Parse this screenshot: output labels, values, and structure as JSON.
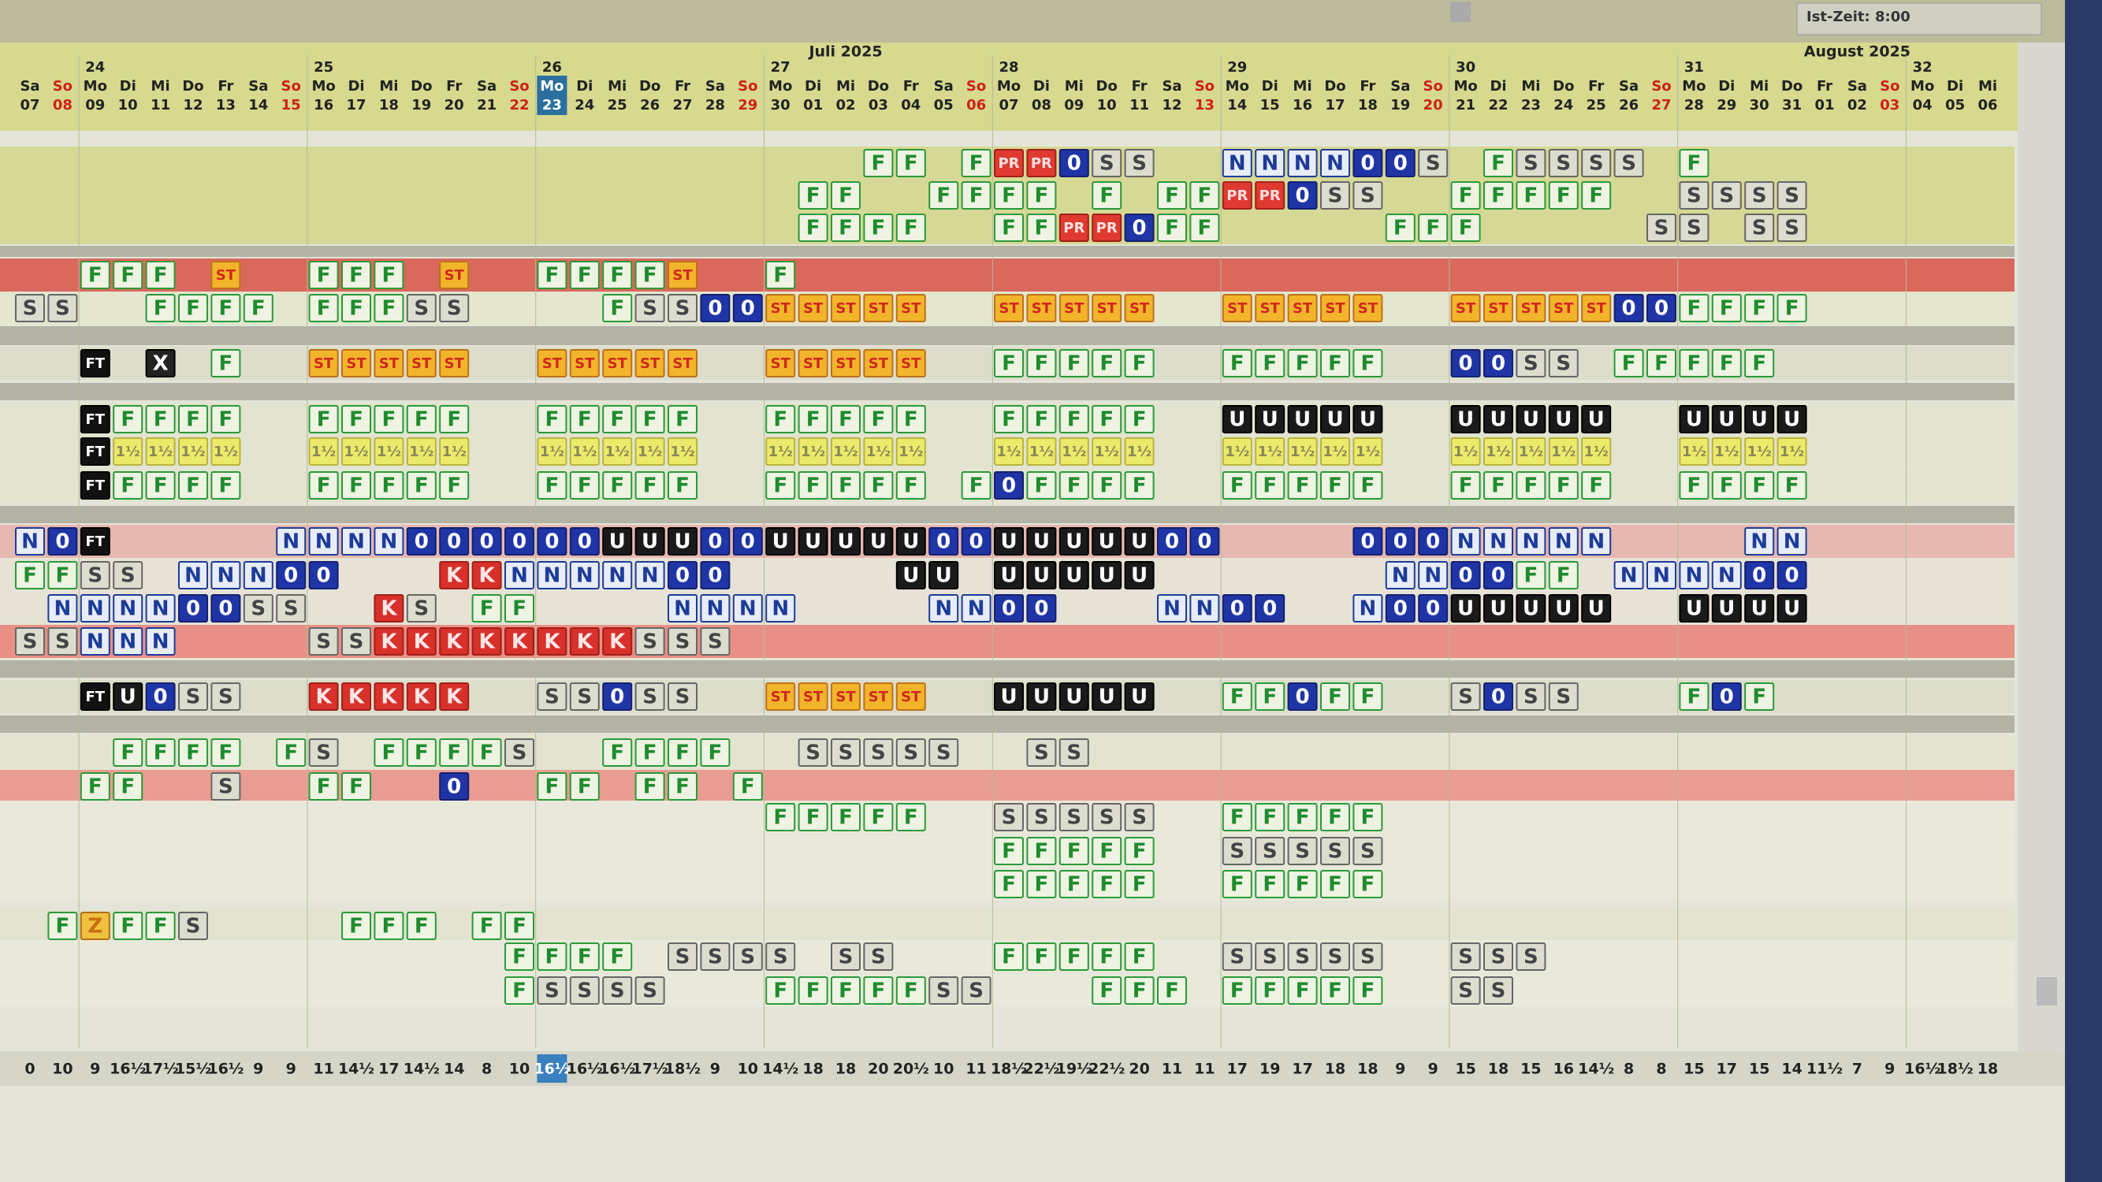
{
  "header": {
    "status": "Ist-Zeit: 8:00",
    "months": [
      "Juli 2025",
      "August 2025"
    ],
    "weeks": [
      "24",
      "25",
      "26",
      "27",
      "28",
      "29",
      "30",
      "31",
      "32"
    ],
    "weekdays": [
      "Sa",
      "So",
      "Mo",
      "Di",
      "Mi",
      "Do",
      "Fr",
      "Sa",
      "So",
      "Mo",
      "Di",
      "Mi",
      "Do",
      "Fr",
      "Sa",
      "So",
      "Mo",
      "Di",
      "Mi",
      "Do",
      "Fr",
      "Sa",
      "So",
      "Mo",
      "Di",
      "Mi",
      "Do",
      "Fr",
      "Sa",
      "So",
      "Mo",
      "Di",
      "Mi",
      "Do",
      "Fr",
      "Sa",
      "So",
      "Mo",
      "Di",
      "Mi",
      "Do",
      "Fr",
      "Sa",
      "So",
      "Mo",
      "Di",
      "Mi",
      "Do",
      "Fr",
      "Sa",
      "So",
      "Mo",
      "Di",
      "Mi",
      "Do",
      "Fr",
      "Sa",
      "So",
      "Mo",
      "Di",
      "Mi"
    ],
    "dates": [
      "07",
      "08",
      "09",
      "10",
      "11",
      "12",
      "13",
      "14",
      "15",
      "16",
      "17",
      "18",
      "19",
      "20",
      "21",
      "22",
      "23",
      "24",
      "25",
      "26",
      "27",
      "28",
      "29",
      "30",
      "01",
      "02",
      "03",
      "04",
      "05",
      "06",
      "07",
      "08",
      "09",
      "10",
      "11",
      "12",
      "13",
      "14",
      "15",
      "16",
      "17",
      "18",
      "19",
      "20",
      "21",
      "22",
      "23",
      "24",
      "25",
      "26",
      "27",
      "28",
      "29",
      "30",
      "31",
      "01",
      "02",
      "03",
      "04",
      "05",
      "06"
    ]
  },
  "rows": [
    [
      null,
      null,
      null,
      null,
      null,
      null,
      null,
      null,
      null,
      null,
      null,
      null,
      null,
      null,
      null,
      null,
      null,
      null,
      null,
      null,
      null,
      null,
      null,
      null,
      null,
      null,
      "F",
      "F",
      null,
      "F",
      "PR",
      "PR",
      "0",
      "S",
      "S",
      null,
      null,
      "N",
      "N",
      "N",
      "N",
      "0",
      "0",
      "S",
      null,
      "F",
      "S",
      "S",
      "S",
      "S",
      null,
      "F",
      null,
      null,
      null,
      null,
      null,
      null,
      null,
      null,
      null
    ],
    [
      null,
      null,
      null,
      null,
      null,
      null,
      null,
      null,
      null,
      null,
      null,
      null,
      null,
      null,
      null,
      null,
      null,
      null,
      null,
      null,
      null,
      null,
      null,
      null,
      "F",
      "F",
      null,
      null,
      "F",
      "F",
      "F",
      "F",
      null,
      "F",
      null,
      "F",
      "F",
      "PR",
      "PR",
      "0",
      "S",
      "S",
      null,
      null,
      "F",
      "F",
      "F",
      "F",
      "F",
      null,
      null,
      "S",
      "S",
      "S",
      "S",
      null,
      null,
      null,
      null,
      null,
      null
    ],
    [
      null,
      null,
      null,
      null,
      null,
      null,
      null,
      null,
      null,
      null,
      null,
      null,
      null,
      null,
      null,
      null,
      null,
      null,
      null,
      null,
      null,
      null,
      null,
      null,
      "F",
      "F",
      "F",
      "F",
      null,
      null,
      "F",
      "F",
      "PR",
      "PR",
      "0",
      "F",
      "F",
      null,
      null,
      null,
      null,
      null,
      "F",
      "F",
      "F",
      null,
      null,
      null,
      null,
      null,
      "S",
      "S",
      null,
      "S",
      "S",
      null,
      null,
      null,
      null,
      null,
      null
    ],
    [
      null,
      null,
      "F",
      "F",
      "F",
      null,
      "ST",
      null,
      null,
      "F",
      "F",
      "F",
      null,
      "ST",
      null,
      null,
      "F",
      "F",
      "F",
      "F",
      "ST",
      null,
      null,
      "F",
      null,
      null,
      null,
      null,
      null,
      null,
      null,
      null,
      null,
      null,
      null,
      null,
      null,
      null,
      null,
      null,
      null,
      null,
      null,
      null,
      null,
      null,
      null,
      null,
      null,
      null,
      null,
      null,
      null,
      null,
      null,
      null,
      null,
      null,
      null,
      null,
      null
    ],
    [
      "S",
      "S",
      null,
      null,
      "F",
      "F",
      "F",
      "F",
      null,
      "F",
      "F",
      "F",
      "S",
      "S",
      null,
      null,
      null,
      null,
      "F",
      "S",
      "S",
      "0",
      "0",
      "ST",
      "ST",
      "ST",
      "ST",
      "ST",
      null,
      null,
      "ST",
      "ST",
      "ST",
      "ST",
      "ST",
      null,
      null,
      "ST",
      "ST",
      "ST",
      "ST",
      "ST",
      null,
      null,
      "ST",
      "ST",
      "ST",
      "ST",
      "ST",
      "0",
      "0",
      "F",
      "F",
      "F",
      "F",
      null,
      null,
      null,
      null,
      null,
      null
    ],
    [
      null,
      null,
      "FT",
      null,
      "X",
      null,
      "F",
      null,
      null,
      "ST",
      "ST",
      "ST",
      "ST",
      "ST",
      null,
      null,
      "ST",
      "ST",
      "ST",
      "ST",
      "ST",
      null,
      null,
      "ST",
      "ST",
      "ST",
      "ST",
      "ST",
      null,
      null,
      "F",
      "F",
      "F",
      "F",
      "F",
      null,
      null,
      "F",
      "F",
      "F",
      "F",
      "F",
      null,
      null,
      "0",
      "0",
      "S",
      "S",
      null,
      "F",
      "F",
      "F",
      "F",
      "F",
      null,
      null,
      null,
      null,
      null,
      null,
      null
    ],
    [
      null,
      null,
      "FT",
      "F",
      "F",
      "F",
      "F",
      null,
      null,
      "F",
      "F",
      "F",
      "F",
      "F",
      null,
      null,
      "F",
      "F",
      "F",
      "F",
      "F",
      null,
      null,
      "F",
      "F",
      "F",
      "F",
      "F",
      null,
      null,
      "F",
      "F",
      "F",
      "F",
      "F",
      null,
      null,
      "U",
      "U",
      "U",
      "U",
      "U",
      null,
      null,
      "U",
      "U",
      "U",
      "U",
      "U",
      null,
      null,
      "U",
      "U",
      "U",
      "U",
      null,
      null,
      null,
      null,
      null,
      null
    ],
    [
      null,
      null,
      "FT",
      "1½",
      "1½",
      "1½",
      "1½",
      null,
      null,
      "1½",
      "1½",
      "1½",
      "1½",
      "1½",
      null,
      null,
      "1½",
      "1½",
      "1½",
      "1½",
      "1½",
      null,
      null,
      "1½",
      "1½",
      "1½",
      "1½",
      "1½",
      null,
      null,
      "1½",
      "1½",
      "1½",
      "1½",
      "1½",
      null,
      null,
      "1½",
      "1½",
      "1½",
      "1½",
      "1½",
      null,
      null,
      "1½",
      "1½",
      "1½",
      "1½",
      "1½",
      null,
      null,
      "1½",
      "1½",
      "1½",
      "1½",
      null,
      null,
      null,
      null,
      null,
      null
    ],
    [
      null,
      null,
      "FT",
      "F",
      "F",
      "F",
      "F",
      null,
      null,
      "F",
      "F",
      "F",
      "F",
      "F",
      null,
      null,
      "F",
      "F",
      "F",
      "F",
      "F",
      null,
      null,
      "F",
      "F",
      "F",
      "F",
      "F",
      null,
      "F",
      "0",
      "F",
      "F",
      "F",
      "F",
      null,
      null,
      "F",
      "F",
      "F",
      "F",
      "F",
      null,
      null,
      "F",
      "F",
      "F",
      "F",
      "F",
      null,
      null,
      "F",
      "F",
      "F",
      "F",
      null,
      null,
      null,
      null,
      null,
      null
    ],
    [
      "N",
      "0",
      "FT",
      null,
      null,
      null,
      null,
      null,
      "N",
      "N",
      "N",
      "N",
      "0",
      "0",
      "0",
      "0",
      "0",
      "0",
      "U",
      "U",
      "U",
      "0",
      "0",
      "U",
      "U",
      "U",
      "U",
      "U",
      "0",
      "0",
      "U",
      "U",
      "U",
      "U",
      "U",
      "0",
      "0",
      null,
      null,
      null,
      null,
      "0",
      "0",
      "0",
      "N",
      "N",
      "N",
      "N",
      "N",
      null,
      null,
      null,
      null,
      "N",
      "N",
      null,
      null,
      null,
      null,
      null,
      null
    ],
    [
      "F",
      "F",
      "S",
      "S",
      null,
      "N",
      "N",
      "N",
      "0",
      "0",
      null,
      null,
      null,
      "K",
      "K",
      "N",
      "N",
      "N",
      "N",
      "N",
      "0",
      "0",
      null,
      null,
      null,
      null,
      null,
      "U",
      "U",
      null,
      "U",
      "U",
      "U",
      "U",
      "U",
      null,
      null,
      null,
      null,
      null,
      null,
      null,
      "N",
      "N",
      "0",
      "0",
      "F",
      "F",
      null,
      "N",
      "N",
      "N",
      "N",
      "0",
      "0",
      null,
      null,
      null,
      null,
      null,
      null
    ],
    [
      null,
      "N",
      "N",
      "N",
      "N",
      "0",
      "0",
      "S",
      "S",
      null,
      null,
      "K",
      "S",
      null,
      "F",
      "F",
      null,
      null,
      null,
      null,
      "N",
      "N",
      "N",
      "N",
      null,
      null,
      null,
      null,
      "N",
      "N",
      "0",
      "0",
      null,
      null,
      null,
      "N",
      "N",
      "0",
      "0",
      null,
      null,
      "N",
      "0",
      "0",
      "U",
      "U",
      "U",
      "U",
      "U",
      null,
      null,
      "U",
      "U",
      "U",
      "U",
      null,
      null,
      null,
      null,
      null,
      null
    ],
    [
      "S",
      "S",
      "N",
      "N",
      "N",
      null,
      null,
      null,
      null,
      "S",
      "S",
      "K",
      "K",
      "K",
      "K",
      "K",
      "K",
      "K",
      "K",
      "S",
      "S",
      "S",
      null,
      null,
      null,
      null,
      null,
      null,
      null,
      null,
      null,
      null,
      null,
      null,
      null,
      null,
      null,
      null,
      null,
      null,
      null,
      null,
      null,
      null,
      null,
      null,
      null,
      null,
      null,
      null,
      null,
      null,
      null,
      null,
      null,
      null,
      null,
      null,
      null,
      null,
      null
    ],
    [
      null,
      null,
      "FT",
      "U",
      "0",
      "S",
      "S",
      null,
      null,
      "K",
      "K",
      "K",
      "K",
      "K",
      null,
      null,
      "S",
      "S",
      "0",
      "S",
      "S",
      null,
      null,
      "ST",
      "ST",
      "ST",
      "ST",
      "ST",
      null,
      null,
      "U",
      "U",
      "U",
      "U",
      "U",
      null,
      null,
      "F",
      "F",
      "0",
      "F",
      "F",
      null,
      null,
      "S",
      "0",
      "S",
      "S",
      null,
      null,
      null,
      "F",
      "0",
      "F",
      null,
      null,
      null,
      null,
      null,
      null,
      null
    ],
    [
      null,
      null,
      null,
      "F",
      "F",
      "F",
      "F",
      null,
      "F",
      "S",
      null,
      "F",
      "F",
      "F",
      "F",
      "S",
      null,
      null,
      "F",
      "F",
      "F",
      "F",
      null,
      null,
      "S",
      "S",
      "S",
      "S",
      "S",
      null,
      null,
      "S",
      "S",
      null,
      null,
      null,
      null,
      null,
      null,
      null,
      null,
      null,
      null,
      null,
      null,
      null,
      null,
      null,
      null,
      null,
      null,
      null,
      null,
      null,
      null,
      null,
      null,
      null,
      null,
      null,
      null
    ],
    [
      null,
      null,
      "F",
      "F",
      null,
      null,
      "S",
      null,
      null,
      "F",
      "F",
      null,
      null,
      "0",
      null,
      null,
      "F",
      "F",
      null,
      "F",
      "F",
      null,
      "F",
      null,
      null,
      null,
      null,
      null,
      null,
      null,
      null,
      null,
      null,
      null,
      null,
      null,
      null,
      null,
      null,
      null,
      null,
      null,
      null,
      null,
      null,
      null,
      null,
      null,
      null,
      null,
      null,
      null,
      null,
      null,
      null,
      null,
      null,
      null,
      null,
      null,
      null
    ],
    [
      null,
      null,
      null,
      null,
      null,
      null,
      null,
      null,
      null,
      null,
      null,
      null,
      null,
      null,
      null,
      null,
      null,
      null,
      null,
      null,
      null,
      null,
      null,
      "F",
      "F",
      "F",
      "F",
      "F",
      null,
      null,
      "S",
      "S",
      "S",
      "S",
      "S",
      null,
      null,
      "F",
      "F",
      "F",
      "F",
      "F",
      null,
      null,
      null,
      null,
      null,
      null,
      null,
      null,
      null,
      null,
      null,
      null,
      null,
      null,
      null,
      null,
      null,
      null,
      null
    ],
    [
      null,
      null,
      null,
      null,
      null,
      null,
      null,
      null,
      null,
      null,
      null,
      null,
      null,
      null,
      null,
      null,
      null,
      null,
      null,
      null,
      null,
      null,
      null,
      null,
      null,
      null,
      null,
      null,
      null,
      null,
      "F",
      "F",
      "F",
      "F",
      "F",
      null,
      null,
      "S",
      "S",
      "S",
      "S",
      "S",
      null,
      null,
      null,
      null,
      null,
      null,
      null,
      null,
      null,
      null,
      null,
      null,
      null,
      null,
      null,
      null,
      null,
      null,
      null
    ],
    [
      null,
      null,
      null,
      null,
      null,
      null,
      null,
      null,
      null,
      null,
      null,
      null,
      null,
      null,
      null,
      null,
      null,
      null,
      null,
      null,
      null,
      null,
      null,
      null,
      null,
      null,
      null,
      null,
      null,
      null,
      "F",
      "F",
      "F",
      "F",
      "F",
      null,
      null,
      "F",
      "F",
      "F",
      "F",
      "F",
      null,
      null,
      null,
      null,
      null,
      null,
      null,
      null,
      null,
      null,
      null,
      null,
      null,
      null,
      null,
      null,
      null,
      null,
      null
    ],
    [
      null,
      "F",
      "Z",
      "F",
      "F",
      "S",
      null,
      null,
      null,
      null,
      "F",
      "F",
      "F",
      null,
      "F",
      "F",
      null,
      null,
      null,
      null,
      null,
      null,
      null,
      null,
      null,
      null,
      null,
      null,
      null,
      null,
      null,
      null,
      null,
      null,
      null,
      null,
      null,
      null,
      null,
      null,
      null,
      null,
      null,
      null,
      null,
      null,
      null,
      null,
      null,
      null,
      null,
      null,
      null,
      null,
      null,
      null,
      null,
      null,
      null,
      null,
      null
    ],
    [
      null,
      null,
      null,
      null,
      null,
      null,
      null,
      null,
      null,
      null,
      null,
      null,
      null,
      null,
      null,
      "F",
      "F",
      "F",
      "F",
      null,
      "S",
      "S",
      "S",
      "S",
      null,
      "S",
      "S",
      null,
      null,
      null,
      "F",
      "F",
      "F",
      "F",
      "F",
      null,
      null,
      "S",
      "S",
      "S",
      "S",
      "S",
      null,
      null,
      "S",
      "S",
      "S",
      null,
      null,
      null,
      null,
      null,
      null,
      null,
      null,
      null,
      null,
      null,
      null,
      null,
      null
    ],
    [
      null,
      null,
      null,
      null,
      null,
      null,
      null,
      null,
      null,
      null,
      null,
      null,
      null,
      null,
      null,
      "F",
      "S",
      "S",
      "S",
      "S",
      null,
      null,
      null,
      "F",
      "F",
      "F",
      "F",
      "F",
      "S",
      "S",
      null,
      null,
      null,
      "F",
      "F",
      "F",
      null,
      "F",
      "F",
      "F",
      "F",
      "F",
      null,
      null,
      "S",
      "S",
      null,
      null,
      null,
      null,
      null,
      null,
      null,
      null,
      null,
      null,
      null,
      null,
      null,
      null,
      null
    ]
  ],
  "totals": [
    "0",
    "10",
    "9",
    "16½",
    "17½",
    "15½",
    "16½",
    "9",
    "9",
    "11",
    "14½",
    "17",
    "14½",
    "14",
    "8",
    "10",
    "16½",
    "16½",
    "16½",
    "17½",
    "18½",
    "9",
    "10",
    "14½",
    "18",
    "18",
    "20",
    "20½",
    "10",
    "11",
    "18½",
    "22½",
    "19½",
    "22½",
    "20",
    "11",
    "11",
    "17",
    "19",
    "17",
    "18",
    "18",
    "9",
    "9",
    "15",
    "18",
    "15",
    "16",
    "14½",
    "8",
    "8",
    "15",
    "17",
    "15",
    "14",
    "11½",
    "7",
    "9",
    "16½",
    "18½",
    "18"
  ]
}
